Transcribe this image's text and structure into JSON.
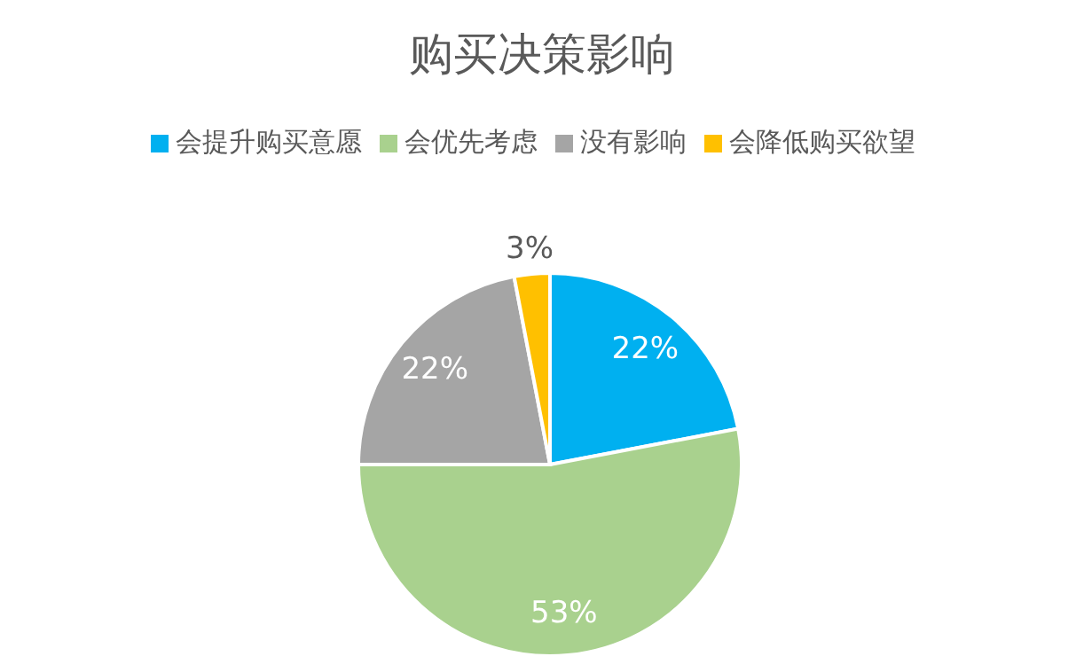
{
  "chart_data": {
    "type": "pie",
    "title": "购买决策影响",
    "categories": [
      "会提升购买意愿",
      "会优先考虑",
      "没有影响",
      "会降低购买欲望"
    ],
    "values": [
      22,
      53,
      22,
      3
    ],
    "value_labels": [
      "22%",
      "53%",
      "22%",
      "3%"
    ],
    "colors": [
      "#00b0f0",
      "#a9d18e",
      "#a5a5a5",
      "#ffc000"
    ],
    "legend": "top"
  }
}
